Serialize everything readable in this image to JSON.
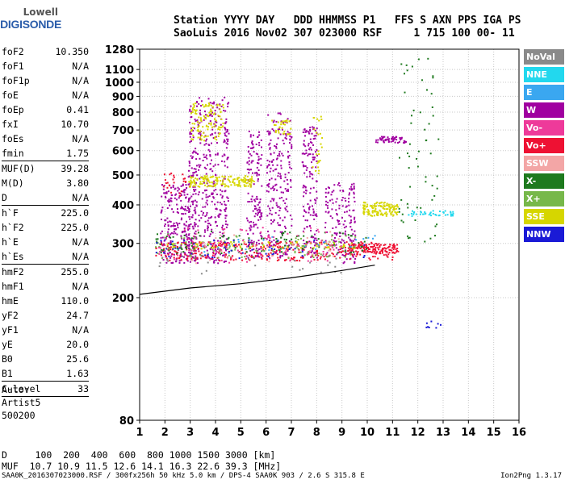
{
  "logo": {
    "line1": "Lowell",
    "line2": "DIGISONDE"
  },
  "header": {
    "line1": "Station YYYY DAY   DDD HHMMSS P1   FFS S AXN PPS IGA PS",
    "line2": "SaoLuis 2016 Nov02 307 023000 RSF     1 715 100 00- 11"
  },
  "params": [
    {
      "k": "foF2",
      "v": "10.350"
    },
    {
      "k": "foF1",
      "v": "N/A"
    },
    {
      "k": "foF1p",
      "v": "N/A"
    },
    {
      "k": "foE",
      "v": "N/A"
    },
    {
      "k": "foEp",
      "v": "0.41"
    },
    {
      "k": "fxI",
      "v": "10.70"
    },
    {
      "k": "foEs",
      "v": "N/A"
    },
    {
      "k": "fmin",
      "v": "1.75",
      "sep": true
    },
    {
      "k": "MUF(D)",
      "v": "39.28"
    },
    {
      "k": "M(D)",
      "v": "3.80"
    },
    {
      "k": "D",
      "v": "N/A",
      "sep": true
    },
    {
      "k": "h`F",
      "v": "225.0"
    },
    {
      "k": "h`F2",
      "v": "225.0"
    },
    {
      "k": "h`E",
      "v": "N/A"
    },
    {
      "k": "h`Es",
      "v": "N/A",
      "sep": true
    },
    {
      "k": "hmF2",
      "v": "255.0"
    },
    {
      "k": "hmF1",
      "v": "N/A"
    },
    {
      "k": "hmE",
      "v": "110.0"
    },
    {
      "k": "yF2",
      "v": "24.7"
    },
    {
      "k": "yF1",
      "v": "N/A"
    },
    {
      "k": "yE",
      "v": "20.0"
    },
    {
      "k": "B0",
      "v": "25.6"
    },
    {
      "k": "B1",
      "v": "1.63",
      "sep": true
    },
    {
      "k": "C-level",
      "v": "33",
      "sep": true
    }
  ],
  "auto": [
    "Auto:",
    "Artist5",
    "500200"
  ],
  "bottom": {
    "d_row": "D     100  200  400  600  800 1000 1500 3000 [km]",
    "muf_row": "MUF  10.7 10.9 11.5 12.6 14.1 16.3 22.6 39.3 [MHz]"
  },
  "footer": {
    "left": "SAA0K_2016307023000.RSF / 300fx256h 50 kHz 5.0 km / DPS-4 SAA0K 903 / 2.6 S 315.8 E",
    "right": "Ion2Png 1.3.17"
  },
  "legend": [
    {
      "label": "NoVal",
      "color": "#8a8a8a"
    },
    {
      "label": "NNE",
      "color": "#22d8ee"
    },
    {
      "label": "E",
      "color": "#3aa7f0"
    },
    {
      "label": "W",
      "color": "#a000a0"
    },
    {
      "label": "Vo-",
      "color": "#ee3a9a"
    },
    {
      "label": "Vo+",
      "color": "#ee1133"
    },
    {
      "label": "SSW",
      "color": "#f3a6a6"
    },
    {
      "label": "X-",
      "color": "#1e7a1e"
    },
    {
      "label": "X+",
      "color": "#77b84a"
    },
    {
      "label": "SSE",
      "color": "#d6d600"
    },
    {
      "label": "NNW",
      "color": "#1a1ad6"
    }
  ],
  "chart_data": {
    "type": "scatter",
    "xlim": [
      1,
      16
    ],
    "ylim": [
      80,
      1280
    ],
    "y_scale": "log",
    "x_ticks": [
      1,
      2,
      3,
      4,
      5,
      6,
      7,
      8,
      9,
      10,
      11,
      12,
      13,
      14,
      15,
      16
    ],
    "y_ticks": [
      80,
      200,
      300,
      400,
      500,
      600,
      700,
      800,
      900,
      1000,
      1100,
      1280
    ],
    "grid": true,
    "series": [
      {
        "name": "W",
        "color": "#a000a0",
        "blobs": [
          [
            1.8,
            3.2,
            260,
            470,
            250
          ],
          [
            2.9,
            4.5,
            260,
            900,
            420
          ],
          [
            5.2,
            5.8,
            270,
            700,
            160
          ],
          [
            6.0,
            7.0,
            270,
            800,
            220
          ],
          [
            7.4,
            8.0,
            270,
            720,
            160
          ],
          [
            8.3,
            9.5,
            260,
            480,
            160
          ],
          [
            10.3,
            11.5,
            640,
            670,
            60
          ]
        ]
      },
      {
        "name": "Vo+",
        "color": "#ee1133",
        "blobs": [
          [
            1.6,
            11.0,
            265,
            305,
            330
          ],
          [
            9.2,
            11.2,
            280,
            300,
            120
          ],
          [
            1.9,
            3.0,
            430,
            520,
            25
          ]
        ]
      },
      {
        "name": "X-",
        "color": "#1e7a1e",
        "blobs": [
          [
            1.6,
            10.0,
            280,
            330,
            110
          ],
          [
            11.2,
            12.8,
            300,
            1200,
            60
          ]
        ]
      },
      {
        "name": "X+",
        "color": "#77b84a",
        "blobs": [
          [
            1.6,
            9.5,
            270,
            320,
            100
          ]
        ]
      },
      {
        "name": "SSE",
        "color": "#d6d600",
        "blobs": [
          [
            2.9,
            5.5,
            460,
            500,
            160
          ],
          [
            3.0,
            4.3,
            650,
            860,
            110
          ],
          [
            9.8,
            11.2,
            370,
            410,
            130
          ],
          [
            6.2,
            7.0,
            680,
            760,
            30
          ],
          [
            7.8,
            8.2,
            500,
            800,
            25
          ],
          [
            2.0,
            9.5,
            290,
            305,
            60
          ]
        ]
      },
      {
        "name": "NNE",
        "color": "#22d8ee",
        "blobs": [
          [
            11.6,
            13.4,
            370,
            385,
            40
          ]
        ]
      },
      {
        "name": "NNW",
        "color": "#1a1ad6",
        "blobs": [
          [
            1.6,
            10.0,
            270,
            310,
            50
          ],
          [
            12.3,
            12.9,
            160,
            170,
            8
          ]
        ]
      },
      {
        "name": "Vo-",
        "color": "#ee3a9a",
        "blobs": [
          [
            1.7,
            9.0,
            260,
            340,
            80
          ]
        ]
      },
      {
        "name": "SSW",
        "color": "#f3a6a6",
        "blobs": [
          [
            2.5,
            9.0,
            260,
            330,
            40
          ]
        ]
      },
      {
        "name": "E",
        "color": "#3aa7f0",
        "blobs": [
          [
            1.7,
            10.5,
            280,
            320,
            25
          ]
        ]
      },
      {
        "name": "NoVal",
        "color": "#8a8a8a",
        "blobs": [
          [
            1.6,
            9.0,
            240,
            290,
            30
          ]
        ]
      }
    ],
    "trace": {
      "color": "#000000",
      "points": [
        [
          1,
          205
        ],
        [
          3,
          215
        ],
        [
          5,
          222
        ],
        [
          7,
          232
        ],
        [
          9,
          245
        ],
        [
          10.3,
          255
        ]
      ]
    }
  }
}
